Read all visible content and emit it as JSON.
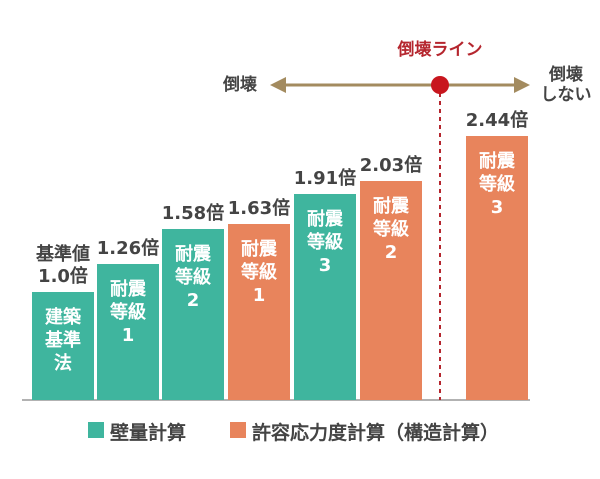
{
  "chart_data": {
    "type": "bar",
    "categories": [
      "建築\n基準\n法",
      "耐震\n等級\n1",
      "耐震\n等級\n2",
      "耐震\n等級\n1",
      "耐震\n等級\n3",
      "耐震\n等級\n2",
      "耐震\n等級\n3"
    ],
    "series": [
      {
        "name": "壁量計算",
        "color": "#3fb59e",
        "values": [
          1.0,
          1.26,
          1.58,
          null,
          1.91,
          null,
          null
        ],
        "value_labels": [
          "基準値\n1.0倍",
          "1.26倍",
          "1.58倍",
          null,
          "1.91倍",
          null,
          null
        ]
      },
      {
        "name": "許容応力度計算（構造計算）",
        "color": "#e8845c",
        "values": [
          null,
          null,
          null,
          1.63,
          null,
          2.03,
          2.44
        ],
        "value_labels": [
          null,
          null,
          null,
          "1.63倍",
          null,
          "2.03倍",
          "2.44倍"
        ]
      }
    ],
    "annotations": [
      "倒壊ライン",
      "倒壊",
      "倒壊\nしない"
    ]
  }
}
